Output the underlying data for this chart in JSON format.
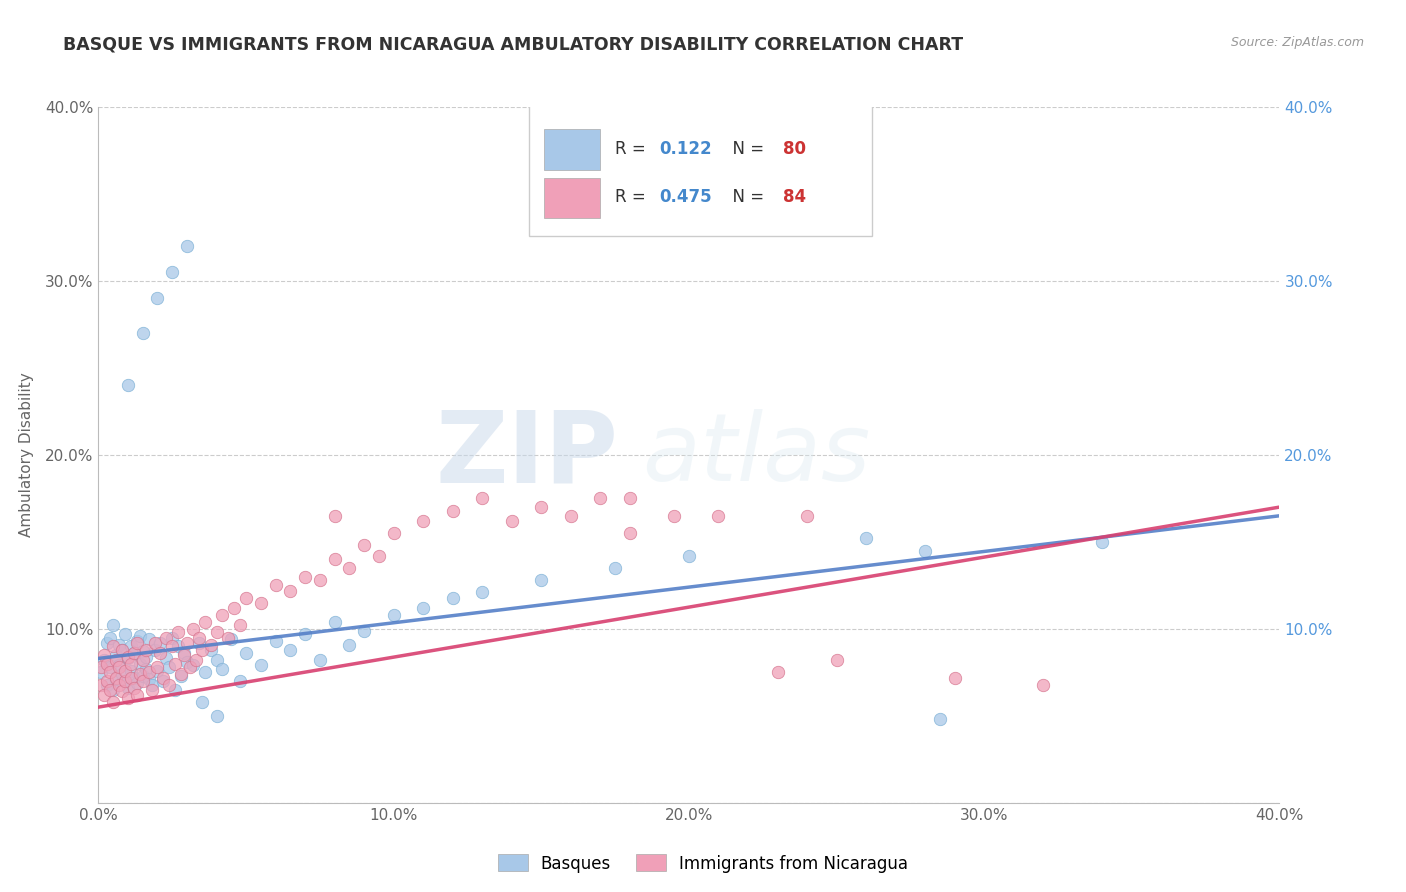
{
  "title": "BASQUE VS IMMIGRANTS FROM NICARAGUA AMBULATORY DISABILITY CORRELATION CHART",
  "source": "Source: ZipAtlas.com",
  "ylabel": "Ambulatory Disability",
  "xlim": [
    0.0,
    0.4
  ],
  "ylim": [
    0.0,
    0.4
  ],
  "xtick_vals": [
    0.0,
    0.1,
    0.2,
    0.3,
    0.4
  ],
  "xtick_labels": [
    "0.0%",
    "10.0%",
    "20.0%",
    "30.0%",
    "40.0%"
  ],
  "ytick_vals": [
    0.0,
    0.1,
    0.2,
    0.3,
    0.4
  ],
  "ytick_labels": [
    "",
    "10.0%",
    "20.0%",
    "30.0%",
    "40.0%"
  ],
  "right_ytick_vals": [
    0.0,
    0.1,
    0.2,
    0.3,
    0.4
  ],
  "right_ytick_labels": [
    "",
    "10.0%",
    "20.0%",
    "30.0%",
    "40.0%"
  ],
  "basque_R": "0.122",
  "basque_N": "80",
  "nicaragua_R": "0.475",
  "nicaragua_N": "84",
  "basque_color": "#a8c8e8",
  "basque_edge_color": "#7aafd4",
  "nicaragua_color": "#f0a0b8",
  "nicaragua_edge_color": "#d4708a",
  "basque_line_color": "#5580c8",
  "nicaragua_line_color": "#d84070",
  "legend_label_basque": "Basques",
  "legend_label_nicaragua": "Immigrants from Nicaragua",
  "watermark_zip": "ZIP",
  "watermark_atlas": "atlas",
  "background_color": "#ffffff",
  "title_color": "#333333",
  "title_fontsize": 12.5,
  "basque_x": [
    0.001,
    0.002,
    0.003,
    0.003,
    0.004,
    0.004,
    0.005,
    0.005,
    0.006,
    0.006,
    0.007,
    0.007,
    0.008,
    0.008,
    0.009,
    0.009,
    0.01,
    0.01,
    0.011,
    0.011,
    0.012,
    0.012,
    0.013,
    0.013,
    0.014,
    0.014,
    0.015,
    0.015,
    0.016,
    0.016,
    0.017,
    0.017,
    0.018,
    0.019,
    0.02,
    0.021,
    0.022,
    0.023,
    0.024,
    0.025,
    0.026,
    0.027,
    0.028,
    0.029,
    0.03,
    0.032,
    0.034,
    0.036,
    0.038,
    0.04,
    0.042,
    0.045,
    0.048,
    0.05,
    0.055,
    0.06,
    0.065,
    0.07,
    0.075,
    0.08,
    0.085,
    0.09,
    0.1,
    0.11,
    0.12,
    0.13,
    0.15,
    0.175,
    0.2,
    0.26,
    0.285,
    0.01,
    0.015,
    0.02,
    0.025,
    0.03,
    0.035,
    0.04,
    0.34,
    0.28
  ],
  "basque_y": [
    0.075,
    0.082,
    0.068,
    0.092,
    0.078,
    0.095,
    0.065,
    0.102,
    0.071,
    0.085,
    0.079,
    0.091,
    0.074,
    0.088,
    0.07,
    0.097,
    0.083,
    0.066,
    0.09,
    0.076,
    0.086,
    0.072,
    0.093,
    0.069,
    0.08,
    0.096,
    0.073,
    0.087,
    0.077,
    0.084,
    0.071,
    0.094,
    0.068,
    0.088,
    0.076,
    0.092,
    0.07,
    0.083,
    0.078,
    0.095,
    0.065,
    0.09,
    0.073,
    0.086,
    0.081,
    0.079,
    0.092,
    0.075,
    0.088,
    0.082,
    0.077,
    0.094,
    0.07,
    0.086,
    0.079,
    0.093,
    0.088,
    0.097,
    0.082,
    0.104,
    0.091,
    0.099,
    0.108,
    0.112,
    0.118,
    0.121,
    0.128,
    0.135,
    0.142,
    0.152,
    0.048,
    0.24,
    0.27,
    0.29,
    0.305,
    0.32,
    0.058,
    0.05,
    0.15,
    0.145
  ],
  "nicaragua_x": [
    0.001,
    0.001,
    0.002,
    0.002,
    0.003,
    0.003,
    0.004,
    0.004,
    0.005,
    0.005,
    0.006,
    0.006,
    0.007,
    0.007,
    0.008,
    0.008,
    0.009,
    0.009,
    0.01,
    0.01,
    0.011,
    0.011,
    0.012,
    0.012,
    0.013,
    0.013,
    0.014,
    0.015,
    0.015,
    0.016,
    0.017,
    0.018,
    0.019,
    0.02,
    0.021,
    0.022,
    0.023,
    0.024,
    0.025,
    0.026,
    0.027,
    0.028,
    0.029,
    0.03,
    0.031,
    0.032,
    0.033,
    0.034,
    0.035,
    0.036,
    0.038,
    0.04,
    0.042,
    0.044,
    0.046,
    0.048,
    0.05,
    0.055,
    0.06,
    0.065,
    0.07,
    0.075,
    0.08,
    0.085,
    0.09,
    0.095,
    0.1,
    0.11,
    0.12,
    0.13,
    0.14,
    0.15,
    0.16,
    0.17,
    0.18,
    0.195,
    0.23,
    0.25,
    0.29,
    0.32,
    0.18,
    0.21,
    0.24,
    0.08
  ],
  "nicaragua_y": [
    0.068,
    0.078,
    0.062,
    0.085,
    0.07,
    0.08,
    0.065,
    0.075,
    0.058,
    0.09,
    0.072,
    0.082,
    0.068,
    0.078,
    0.064,
    0.088,
    0.07,
    0.076,
    0.06,
    0.084,
    0.072,
    0.08,
    0.066,
    0.086,
    0.062,
    0.092,
    0.074,
    0.07,
    0.082,
    0.088,
    0.075,
    0.065,
    0.092,
    0.078,
    0.086,
    0.072,
    0.095,
    0.068,
    0.09,
    0.08,
    0.098,
    0.074,
    0.085,
    0.092,
    0.078,
    0.1,
    0.082,
    0.095,
    0.088,
    0.104,
    0.091,
    0.098,
    0.108,
    0.095,
    0.112,
    0.102,
    0.118,
    0.115,
    0.125,
    0.122,
    0.13,
    0.128,
    0.14,
    0.135,
    0.148,
    0.142,
    0.155,
    0.162,
    0.168,
    0.175,
    0.162,
    0.17,
    0.165,
    0.175,
    0.175,
    0.165,
    0.075,
    0.082,
    0.072,
    0.068,
    0.155,
    0.165,
    0.165,
    0.165
  ]
}
